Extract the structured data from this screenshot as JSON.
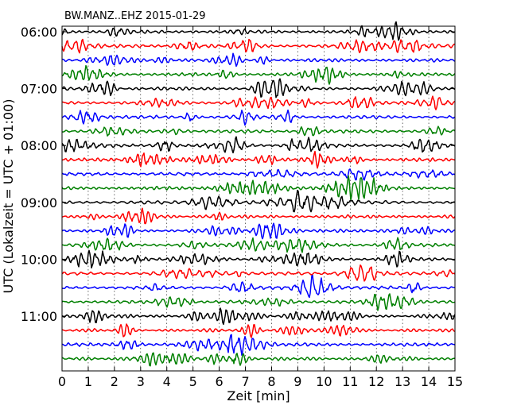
{
  "chart_data": {
    "type": "line",
    "title": "BW.MANZ..EHZ 2015-01-29",
    "xlabel": "Zeit  [min]",
    "ylabel": "UTC (Lokalzeit = UTC + 01:00)",
    "xlim": [
      0,
      15
    ],
    "x_ticks": [
      "0",
      "1",
      "2",
      "3",
      "4",
      "5",
      "6",
      "7",
      "8",
      "9",
      "10",
      "11",
      "12",
      "13",
      "14",
      "15"
    ],
    "y_time_labels": [
      "06:00",
      "07:00",
      "08:00",
      "09:00",
      "10:00",
      "11:00"
    ],
    "trace_interval_min": 15,
    "traces_count": 24,
    "trace_colors": [
      "#000000",
      "#ff0000",
      "#0000ff",
      "#008000"
    ],
    "grid": true
  }
}
